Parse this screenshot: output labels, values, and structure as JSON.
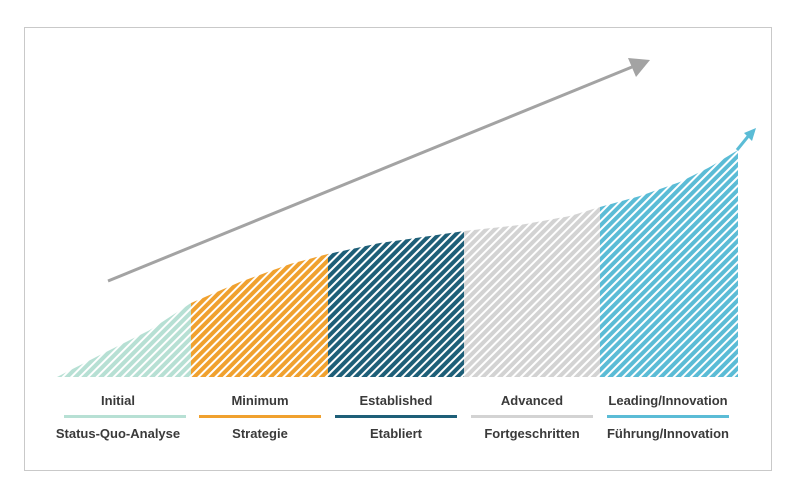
{
  "stages": [
    {
      "label_en": "Initial",
      "label_de": "Status-Quo-Analyse",
      "color": "#b7e0d4"
    },
    {
      "label_en": "Minimum",
      "label_de": "Strategie",
      "color": "#f0a12f"
    },
    {
      "label_en": "Established",
      "label_de": "Etabliert",
      "color": "#1e5f78"
    },
    {
      "label_en": "Advanced",
      "label_de": "Fortgeschritten",
      "color": "#d3d3d3"
    },
    {
      "label_en": "Leading/Innovation",
      "label_de": "Führung/Innovation",
      "color": "#5bbcd6"
    }
  ],
  "colors": {
    "trend_arrow": "#a3a3a3",
    "curve_arrow": "#5bbcd6",
    "frame_border": "#c9c9c9",
    "label_text": "#3a3a3a"
  }
}
